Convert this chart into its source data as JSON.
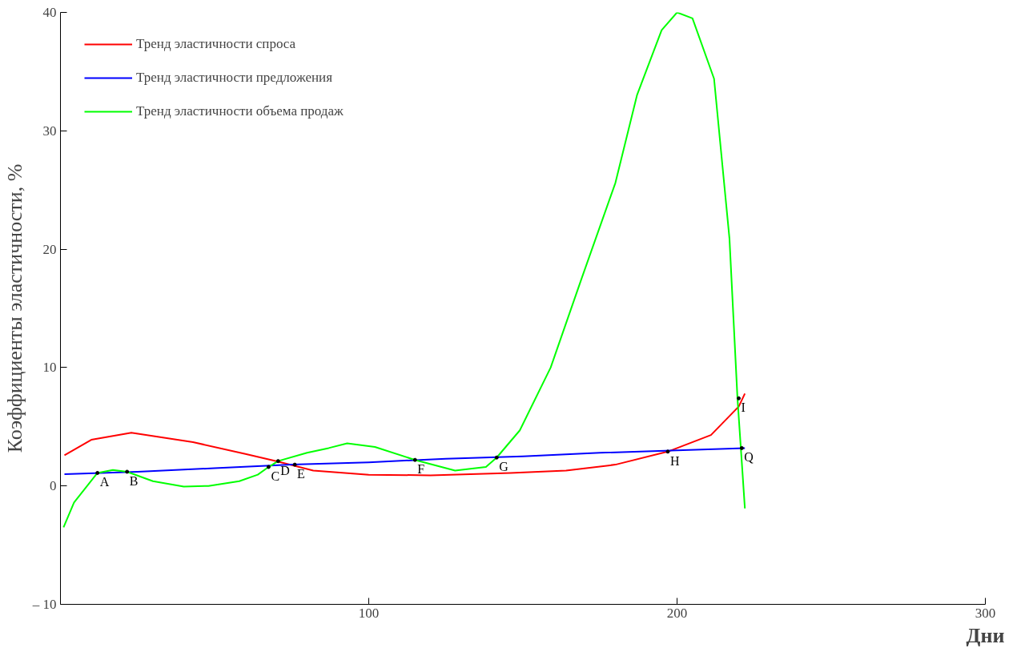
{
  "chart_data": {
    "type": "line",
    "xlabel": "Дни",
    "ylabel": "Коэффициенты эластичности, %",
    "xlim": [
      0,
      300
    ],
    "xticks": [
      100,
      200,
      300
    ],
    "ylim": [
      -10,
      40
    ],
    "yticks": [
      {
        "value": -10,
        "label": "– 10"
      },
      0,
      10,
      20,
      30,
      40
    ],
    "grid": false,
    "legend": "top left",
    "marker": "none",
    "line_style": "solid",
    "series": [
      {
        "name": "Тренд эластичности спроса",
        "color": "#ff0000",
        "x": [
          1.3,
          10,
          23,
          43,
          60,
          70,
          82,
          100,
          120,
          146,
          164,
          180,
          197,
          211,
          220,
          222
        ],
        "values": [
          2.6,
          3.9,
          4.5,
          3.7,
          2.7,
          2.1,
          1.3,
          0.95,
          0.9,
          1.1,
          1.3,
          1.8,
          2.9,
          4.3,
          6.7,
          7.8
        ]
      },
      {
        "name": "Тренд эластичности предложения",
        "color": "#0000ff",
        "x": [
          1.3,
          25,
          50,
          75,
          100,
          125,
          150,
          175,
          200,
          222
        ],
        "values": [
          1.0,
          1.2,
          1.5,
          1.8,
          2.0,
          2.3,
          2.5,
          2.8,
          3.0,
          3.2
        ]
      },
      {
        "name": "Тренд эластичности объема продаж",
        "color": "#00ff00",
        "x": [
          1,
          4.4,
          12,
          17,
          21.6,
          30,
          40,
          48,
          58,
          64,
          67.5,
          70.6,
          80,
          87,
          93,
          102,
          115,
          128,
          138,
          141.5,
          149,
          159,
          169,
          180,
          187,
          195,
          200,
          205,
          212,
          217,
          219.6,
          221,
          222
        ],
        "values": [
          -3.5,
          -1.4,
          1.1,
          1.35,
          1.2,
          0.4,
          -0.05,
          0,
          0.4,
          0.95,
          1.6,
          2.1,
          2.8,
          3.2,
          3.6,
          3.3,
          2.2,
          1.3,
          1.6,
          2.4,
          4.7,
          10,
          17.5,
          25.6,
          33,
          38.5,
          40,
          39.5,
          34.4,
          20.9,
          7.4,
          2,
          -1.9
        ]
      }
    ],
    "annotations": [
      {
        "text": "A",
        "x": 12,
        "y": 1.1
      },
      {
        "text": "B",
        "x": 21.6,
        "y": 1.2
      },
      {
        "text": "C",
        "x": 67.5,
        "y": 1.6
      },
      {
        "text": "D",
        "x": 70.6,
        "y": 2.1
      },
      {
        "text": "E",
        "x": 76,
        "y": 1.8
      },
      {
        "text": "F",
        "x": 115,
        "y": 2.2
      },
      {
        "text": "G",
        "x": 141.5,
        "y": 2.4
      },
      {
        "text": "H",
        "x": 197,
        "y": 2.9
      },
      {
        "text": "I",
        "x": 220,
        "y": 7.4
      },
      {
        "text": "Q",
        "x": 221,
        "y": 3.2
      }
    ]
  }
}
